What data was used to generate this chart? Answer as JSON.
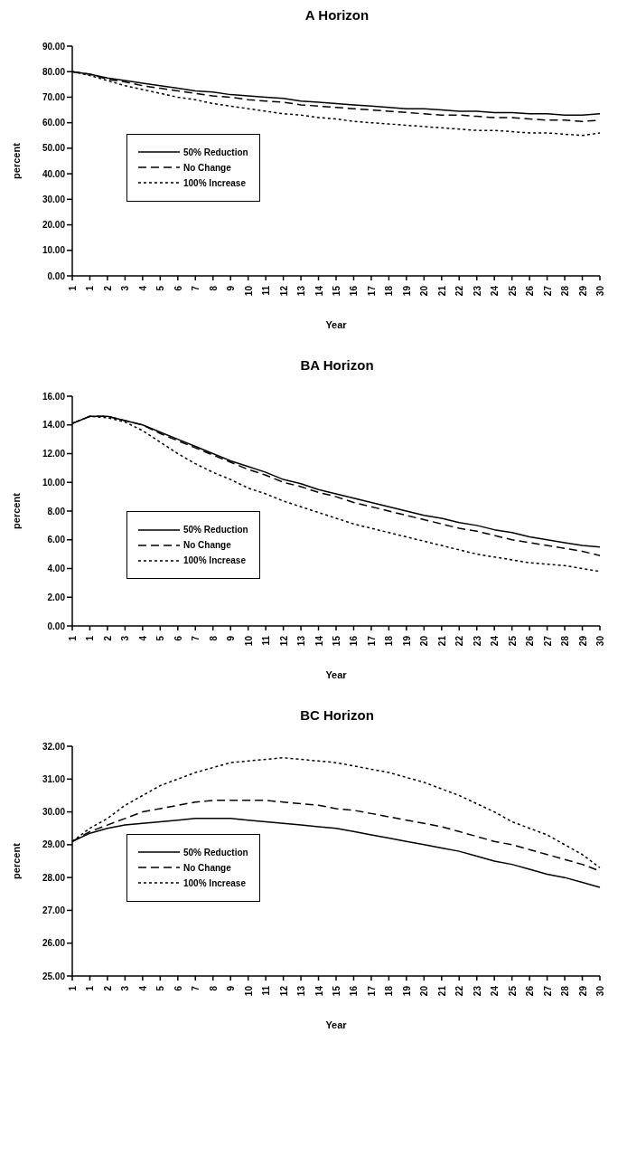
{
  "chart_data": [
    {
      "type": "line",
      "title": "A Horizon",
      "xlabel": "Year",
      "ylabel": "percent",
      "categories": [
        "1",
        "1",
        "2",
        "3",
        "4",
        "5",
        "6",
        "7",
        "8",
        "9",
        "10",
        "11",
        "12",
        "13",
        "14",
        "15",
        "16",
        "17",
        "18",
        "19",
        "20",
        "21",
        "22",
        "23",
        "24",
        "25",
        "26",
        "27",
        "28",
        "29",
        "30"
      ],
      "ylim": [
        0,
        90
      ],
      "yticks": [
        {
          "value": 0,
          "label": "0.00"
        },
        {
          "value": 10,
          "label": "10.00"
        },
        {
          "value": 20,
          "label": "20.00"
        },
        {
          "value": 30,
          "label": "30.00"
        },
        {
          "value": 40,
          "label": "40.00"
        },
        {
          "value": 50,
          "label": "50.00"
        },
        {
          "value": 60,
          "label": "60.00"
        },
        {
          "value": 70,
          "label": "70.00"
        },
        {
          "value": 80,
          "label": "80.00"
        },
        {
          "value": 90,
          "label": "90.00"
        }
      ],
      "grid": false,
      "legend": "left",
      "marker": "none",
      "series": [
        {
          "name": "50% Reduction",
          "color": "#000000",
          "line_style": "solid",
          "values": [
            80,
            79,
            77.5,
            76.5,
            75.5,
            74.5,
            73.5,
            72.5,
            72,
            71,
            70.5,
            70,
            69.5,
            68.5,
            68,
            67.5,
            67,
            66.5,
            66,
            65.5,
            65.5,
            65,
            64.5,
            64.5,
            64,
            64,
            63.5,
            63.5,
            63,
            63,
            63.5
          ]
        },
        {
          "name": "No Change",
          "color": "#000000",
          "line_style": "dashed",
          "values": [
            80,
            79,
            77,
            76,
            74.5,
            73.5,
            72.5,
            71.5,
            70.5,
            70,
            69,
            68.5,
            68,
            67,
            66.5,
            66,
            65.5,
            65,
            64.5,
            64,
            63.5,
            63,
            63,
            62.5,
            62,
            62,
            61.5,
            61,
            61,
            60.5,
            61
          ]
        },
        {
          "name": "100% Increase",
          "color": "#000000",
          "line_style": "dotted",
          "values": [
            80,
            78.5,
            76.5,
            74.5,
            73,
            71.5,
            70,
            69,
            67.5,
            66.5,
            65.5,
            64.5,
            63.5,
            63,
            62,
            61.5,
            60.5,
            60,
            59.5,
            59,
            58.5,
            58,
            57.5,
            57,
            57,
            56.5,
            56,
            56,
            55.5,
            55,
            56
          ]
        }
      ]
    },
    {
      "type": "line",
      "title": "BA Horizon",
      "xlabel": "Year",
      "ylabel": "percent",
      "categories": [
        "1",
        "1",
        "2",
        "3",
        "4",
        "5",
        "6",
        "7",
        "8",
        "9",
        "10",
        "11",
        "12",
        "13",
        "14",
        "15",
        "16",
        "17",
        "18",
        "19",
        "20",
        "21",
        "22",
        "23",
        "24",
        "25",
        "26",
        "27",
        "28",
        "29",
        "30"
      ],
      "ylim": [
        0,
        16
      ],
      "yticks": [
        {
          "value": 0,
          "label": "0.00"
        },
        {
          "value": 2,
          "label": "2.00"
        },
        {
          "value": 4,
          "label": "4.00"
        },
        {
          "value": 6,
          "label": "6.00"
        },
        {
          "value": 8,
          "label": "8.00"
        },
        {
          "value": 10,
          "label": "10.00"
        },
        {
          "value": 12,
          "label": "12.00"
        },
        {
          "value": 14,
          "label": "14.00"
        },
        {
          "value": 16,
          "label": "16.00"
        }
      ],
      "grid": false,
      "legend": "bottom left",
      "marker": "none",
      "series": [
        {
          "name": "50% Reduction",
          "color": "#000000",
          "line_style": "solid",
          "values": [
            14.1,
            14.6,
            14.6,
            14.3,
            14.0,
            13.5,
            13.0,
            12.5,
            12.0,
            11.5,
            11.1,
            10.7,
            10.2,
            9.9,
            9.5,
            9.2,
            8.9,
            8.6,
            8.3,
            8.0,
            7.7,
            7.5,
            7.2,
            7.0,
            6.7,
            6.5,
            6.2,
            6.0,
            5.8,
            5.6,
            5.5
          ]
        },
        {
          "name": "No Change",
          "color": "#000000",
          "line_style": "dashed",
          "values": [
            14.1,
            14.6,
            14.6,
            14.3,
            14.0,
            13.4,
            12.9,
            12.4,
            11.9,
            11.4,
            10.9,
            10.5,
            10.0,
            9.7,
            9.3,
            9.0,
            8.6,
            8.3,
            8.0,
            7.7,
            7.4,
            7.1,
            6.8,
            6.6,
            6.3,
            6.0,
            5.8,
            5.6,
            5.4,
            5.2,
            4.9
          ]
        },
        {
          "name": "100% Increase",
          "color": "#000000",
          "line_style": "dotted",
          "values": [
            14.1,
            14.6,
            14.5,
            14.2,
            13.6,
            12.8,
            12.0,
            11.3,
            10.7,
            10.2,
            9.6,
            9.2,
            8.7,
            8.3,
            7.9,
            7.5,
            7.1,
            6.8,
            6.5,
            6.2,
            5.9,
            5.6,
            5.3,
            5.0,
            4.8,
            4.6,
            4.4,
            4.3,
            4.2,
            4.0,
            3.8
          ]
        }
      ]
    },
    {
      "type": "line",
      "title": "BC Horizon",
      "xlabel": "Year",
      "ylabel": "percent",
      "categories": [
        "1",
        "1",
        "2",
        "3",
        "4",
        "5",
        "6",
        "7",
        "8",
        "9",
        "10",
        "11",
        "12",
        "13",
        "14",
        "15",
        "16",
        "17",
        "18",
        "19",
        "20",
        "21",
        "22",
        "23",
        "24",
        "25",
        "26",
        "27",
        "28",
        "29",
        "30"
      ],
      "ylim": [
        25,
        32
      ],
      "yticks": [
        {
          "value": 25,
          "label": "25.00"
        },
        {
          "value": 26,
          "label": "26.00"
        },
        {
          "value": 27,
          "label": "27.00"
        },
        {
          "value": 28,
          "label": "28.00"
        },
        {
          "value": 29,
          "label": "29.00"
        },
        {
          "value": 30,
          "label": "30.00"
        },
        {
          "value": 31,
          "label": "31.00"
        },
        {
          "value": 32,
          "label": "32.00"
        }
      ],
      "grid": false,
      "legend": "left",
      "marker": "none",
      "series": [
        {
          "name": "50% Reduction",
          "color": "#000000",
          "line_style": "solid",
          "values": [
            29.1,
            29.35,
            29.5,
            29.6,
            29.65,
            29.7,
            29.75,
            29.8,
            29.8,
            29.8,
            29.75,
            29.7,
            29.65,
            29.6,
            29.55,
            29.5,
            29.4,
            29.3,
            29.2,
            29.1,
            29.0,
            28.9,
            28.8,
            28.65,
            28.5,
            28.4,
            28.25,
            28.1,
            28.0,
            27.85,
            27.7
          ]
        },
        {
          "name": "No Change",
          "color": "#000000",
          "line_style": "dashed",
          "values": [
            29.1,
            29.4,
            29.6,
            29.8,
            30.0,
            30.1,
            30.2,
            30.3,
            30.35,
            30.35,
            30.35,
            30.35,
            30.3,
            30.25,
            30.2,
            30.1,
            30.05,
            29.95,
            29.85,
            29.75,
            29.65,
            29.55,
            29.4,
            29.25,
            29.1,
            29.0,
            28.85,
            28.7,
            28.55,
            28.4,
            28.2
          ]
        },
        {
          "name": "100% Increase",
          "color": "#000000",
          "line_style": "dotted",
          "values": [
            29.1,
            29.5,
            29.8,
            30.2,
            30.5,
            30.8,
            31.0,
            31.2,
            31.35,
            31.5,
            31.55,
            31.6,
            31.65,
            31.6,
            31.55,
            31.5,
            31.4,
            31.3,
            31.2,
            31.05,
            30.9,
            30.7,
            30.5,
            30.25,
            30.0,
            29.7,
            29.5,
            29.3,
            29.0,
            28.7,
            28.3
          ]
        }
      ]
    }
  ]
}
